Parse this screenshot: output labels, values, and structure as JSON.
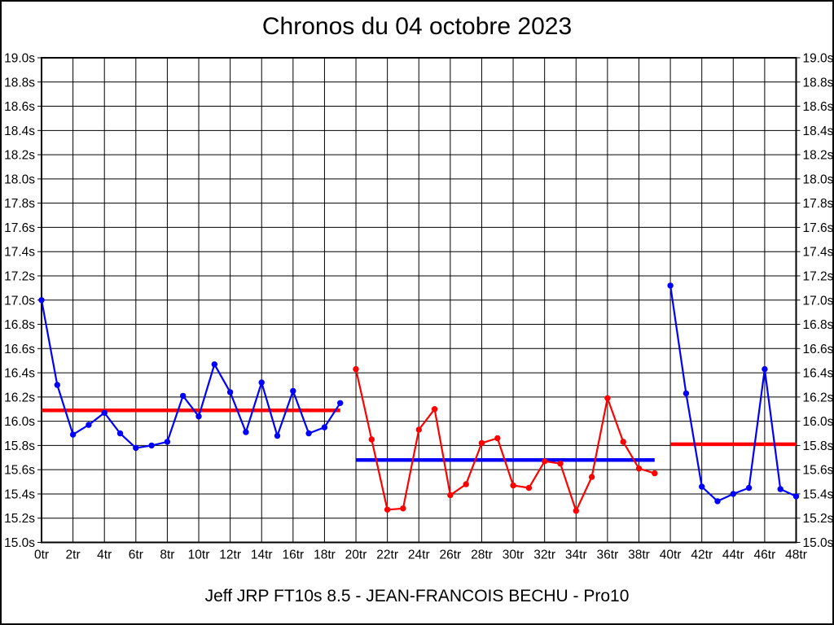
{
  "title": "Chronos du 04 octobre 2023",
  "caption": "Jeff JRP FT10s 8.5 - JEAN-FRANCOIS BECHU - Pro10",
  "colors": {
    "blue_series": "#0000ff",
    "red_series": "#ff0000",
    "grid": "#000000",
    "background": "#ffffff"
  },
  "chart_data": {
    "type": "line",
    "title": "Chronos du 04 octobre 2023",
    "xlabel": "",
    "ylabel": "",
    "x_unit": "tr",
    "y_unit": "s",
    "xlim": [
      0,
      48
    ],
    "ylim": [
      15.0,
      19.0
    ],
    "x_tick_step": 2,
    "y_tick_step": 0.2,
    "grid": true,
    "legend": "none",
    "x_tick_labels": [
      "0tr",
      "2tr",
      "4tr",
      "6tr",
      "8tr",
      "10tr",
      "12tr",
      "14tr",
      "16tr",
      "18tr",
      "20tr",
      "22tr",
      "24tr",
      "26tr",
      "28tr",
      "30tr",
      "32tr",
      "34tr",
      "36tr",
      "38tr",
      "40tr",
      "42tr",
      "44tr",
      "46tr",
      "48tr"
    ],
    "y_tick_labels": [
      "19.0s",
      "18.8s",
      "18.6s",
      "18.4s",
      "18.2s",
      "18.0s",
      "17.8s",
      "17.6s",
      "17.4s",
      "17.2s",
      "17.0s",
      "16.8s",
      "16.6s",
      "16.4s",
      "16.2s",
      "16.0s",
      "15.8s",
      "15.6s",
      "15.4s",
      "15.2s",
      "15.0s"
    ],
    "series": [
      {
        "name": "stint-1-laps",
        "color": "#0000ff",
        "x": [
          0,
          1,
          2,
          3,
          4,
          5,
          6,
          7,
          8,
          9,
          10,
          11,
          12,
          13,
          14,
          15,
          16,
          17,
          18,
          19
        ],
        "values": [
          17.0,
          16.3,
          15.89,
          15.97,
          16.07,
          15.9,
          15.78,
          15.8,
          15.83,
          16.21,
          16.04,
          16.47,
          16.24,
          15.91,
          16.32,
          15.88,
          16.25,
          15.9,
          15.95,
          16.15
        ]
      },
      {
        "name": "stint-2-laps",
        "color": "#ff0000",
        "x": [
          20,
          21,
          22,
          23,
          24,
          25,
          26,
          27,
          28,
          29,
          30,
          31,
          32,
          33,
          34,
          35,
          36,
          37,
          38,
          39
        ],
        "values": [
          16.43,
          15.85,
          15.27,
          15.28,
          15.93,
          16.1,
          15.39,
          15.48,
          15.82,
          15.86,
          15.47,
          15.45,
          15.67,
          15.65,
          15.26,
          15.54,
          16.19,
          15.83,
          15.61,
          15.57
        ]
      },
      {
        "name": "stint-3-laps",
        "color": "#0000ff",
        "x": [
          40,
          41,
          42,
          43,
          44,
          45,
          46,
          47,
          48
        ],
        "values": [
          17.12,
          16.23,
          15.46,
          15.34,
          15.4,
          15.45,
          16.43,
          15.44,
          15.38
        ]
      }
    ],
    "average_lines": [
      {
        "name": "stint-1-average",
        "value": 16.09,
        "x_start": 0,
        "x_end": 19,
        "color": "#ff0000"
      },
      {
        "name": "stint-2-average",
        "value": 15.68,
        "x_start": 20,
        "x_end": 39,
        "color": "#0000ff"
      },
      {
        "name": "stint-3-average",
        "value": 15.81,
        "x_start": 40,
        "x_end": 48,
        "color": "#ff0000"
      }
    ]
  }
}
